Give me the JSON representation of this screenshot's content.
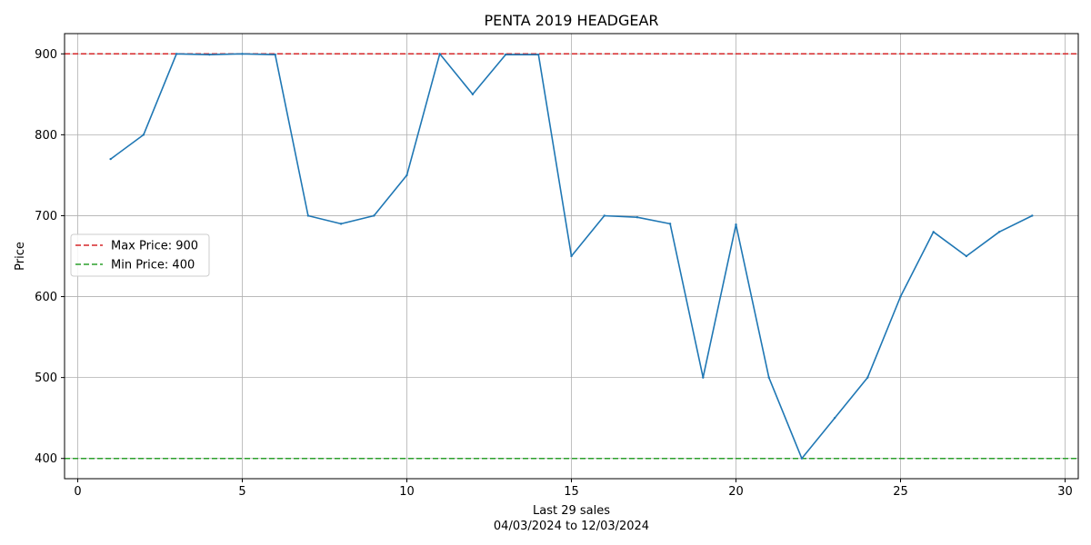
{
  "chart_data": {
    "type": "line",
    "title": "PENTA 2019 HEADGEAR",
    "xlabel": "Last 29 sales",
    "xlabel_sub": "04/03/2024 to 12/03/2024",
    "ylabel": "Price",
    "xlim": [
      -0.4,
      30.4
    ],
    "ylim": [
      375,
      925
    ],
    "xticks": [
      0,
      5,
      10,
      15,
      20,
      25,
      30
    ],
    "yticks": [
      400,
      500,
      600,
      700,
      800,
      900
    ],
    "grid": true,
    "legend_position": "center-left",
    "series": [
      {
        "color": "#1f77b4",
        "x": [
          1,
          2,
          3,
          4,
          5,
          6,
          7,
          8,
          9,
          10,
          11,
          12,
          13,
          14,
          15,
          16,
          17,
          18,
          19,
          20,
          21,
          22,
          23,
          24,
          25,
          26,
          27,
          28,
          29
        ],
        "y": [
          770,
          800,
          900,
          899,
          900,
          899,
          700,
          690,
          700,
          750,
          900,
          850,
          899,
          899,
          650,
          700,
          698,
          690,
          500,
          689,
          500,
          400,
          450,
          500,
          600,
          680,
          650,
          680,
          700
        ]
      }
    ],
    "reference_lines": [
      {
        "name": "Max Price: 900",
        "value": 900,
        "color": "#d62728",
        "style": "dashed"
      },
      {
        "name": "Min Price: 400",
        "value": 400,
        "color": "#2ca02c",
        "style": "dashed"
      }
    ]
  }
}
